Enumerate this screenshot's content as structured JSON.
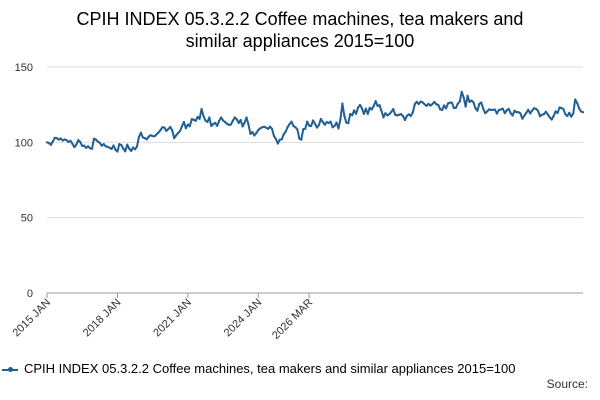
{
  "title_lines": [
    "CPIH INDEX 05.3.2.2 Coffee machines, tea makers and",
    "similar appliances 2015=100"
  ],
  "source_label": "Source:",
  "colors": {
    "series": "#206095",
    "grid": "#dddddd",
    "axis": "#999999",
    "text": "#333333"
  },
  "chart_data": {
    "type": "line",
    "title": "CPIH INDEX 05.3.2.2 Coffee machines, tea makers and similar appliances 2015=100",
    "xlabel": "",
    "ylabel": "",
    "ylim": [
      0,
      150
    ],
    "yticks": [
      0,
      50,
      100,
      150
    ],
    "xticks": [
      "2015 JAN",
      "2018 JAN",
      "2021 JAN",
      "2024 JAN",
      "2026 MAR"
    ],
    "grid": true,
    "legend_position": "bottom",
    "x_start": "2015 JAN",
    "x_end": "2026 MAR",
    "series": [
      {
        "name": "CPIH INDEX 05.3.2.2 Coffee machines, tea makers and similar appliances 2015=100",
        "values": [
          100.0,
          99.5,
          98.4,
          100.6,
          103.0,
          102.8,
          101.8,
          102.6,
          101.2,
          101.9,
          101.5,
          100.2,
          101.0,
          99.0,
          96.8,
          98.5,
          101.4,
          100.2,
          97.6,
          97.8,
          96.4,
          97.3,
          96.1,
          95.7,
          102.4,
          101.8,
          100.5,
          99.6,
          97.8,
          98.8,
          97.4,
          97.0,
          96.4,
          95.6,
          97.9,
          95.1,
          93.9,
          98.8,
          98.2,
          95.8,
          94.1,
          98.4,
          95.9,
          94.3,
          96.5,
          95.4,
          97.3,
          103.5,
          106.4,
          103.3,
          102.8,
          102.0,
          103.8,
          104.7,
          104.2,
          104.0,
          105.3,
          106.5,
          108.1,
          110.0,
          109.8,
          107.6,
          108.8,
          110.2,
          108.0,
          102.8,
          104.6,
          106.2,
          107.5,
          110.7,
          113.5,
          109.4,
          111.8,
          110.7,
          115.3,
          115.0,
          114.3,
          116.8,
          115.6,
          122.1,
          117.4,
          114.5,
          113.5,
          116.5,
          110.8,
          112.2,
          112.9,
          111.0,
          114.2,
          116.5,
          114.5,
          113.5,
          112.4,
          111.6,
          111.8,
          114.3,
          116.5,
          115.3,
          112.9,
          114.8,
          110.6,
          113.1,
          116.5,
          111.8,
          105.6,
          106.8,
          104.5,
          106.1,
          108.2,
          109.3,
          110.0,
          110.3,
          109.8,
          108.9,
          110.4,
          109.0,
          104.3,
          102.2,
          99.2,
          101.7,
          102.0,
          105.3,
          107.1,
          110.1,
          112.1,
          113.7,
          110.8,
          110.0,
          108.5,
          102.5,
          101.8,
          108.7,
          109.0,
          113.7,
          111.1,
          110.8,
          114.5,
          112.3,
          109.8,
          111.5,
          115.5,
          113.5,
          111.7,
          113.4,
          112.9,
          113.7,
          110.0,
          110.9,
          113.1,
          109.2,
          115.4,
          125.7,
          117.6,
          113.1,
          112.7,
          118.8,
          118.0,
          121.2,
          119.0,
          123.0,
          124.8,
          122.6,
          118.9,
          122.3,
          118.9,
          122.9,
          121.8,
          124.1,
          127.3,
          124.2,
          124.6,
          120.8,
          116.6,
          119.3,
          117.9,
          118.7,
          120.2,
          122.1,
          118.3,
          117.9,
          118.3,
          118.7,
          117.4,
          114.8,
          117.6,
          118.6,
          117.5,
          119.9,
          125.3,
          126.9,
          125.4,
          127.0,
          126.5,
          125.3,
          124.2,
          125.5,
          124.4,
          125.4,
          126.8,
          125.3,
          124.8,
          121.9,
          121.5,
          124.5,
          122.5,
          125.8,
          126.4,
          126.3,
          122.8,
          122.9,
          125.6,
          127.1,
          133.5,
          129.8,
          123.7,
          130.9,
          126.8,
          127.7,
          126.6,
          122.6,
          121.0,
          125.5,
          126.4,
          122.3,
          119.4,
          120.5,
          121.9,
          121.5,
          121.6,
          121.7,
          119.1,
          121.5,
          121.8,
          122.3,
          119.4,
          121.2,
          122.2,
          119.4,
          117.8,
          121.0,
          120.0,
          120.1,
          119.2,
          115.7,
          117.7,
          119.6,
          121.6,
          119.2,
          121.0,
          122.6,
          122.2,
          120.9,
          117.3,
          118.3,
          118.7,
          120.3,
          118.5,
          116.6,
          115.1,
          117.5,
          120.6,
          119.5,
          123.1,
          122.8,
          122.0,
          118.6,
          117.5,
          119.6,
          117.1,
          119.1,
          128.4,
          126.2,
          122.6,
          120.5,
          120.0
        ]
      }
    ]
  }
}
